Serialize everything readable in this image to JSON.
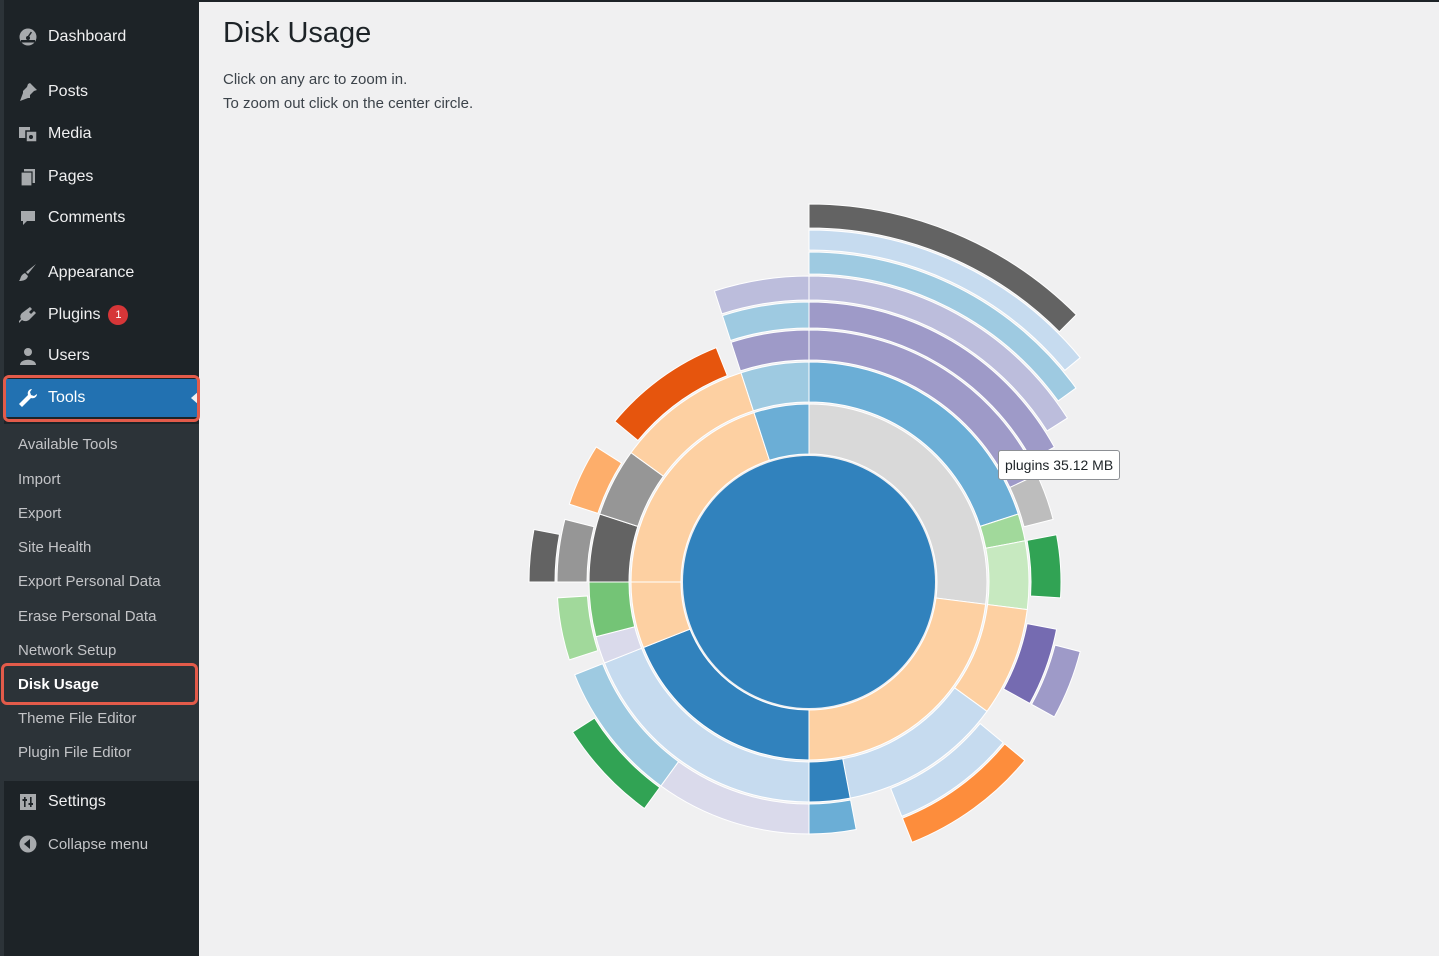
{
  "sidebar": {
    "items": [
      {
        "id": "dashboard",
        "label": "Dashboard",
        "icon": "dashboard-icon"
      },
      {
        "id": "posts",
        "label": "Posts",
        "icon": "pushpin-icon"
      },
      {
        "id": "media",
        "label": "Media",
        "icon": "media-icon"
      },
      {
        "id": "pages",
        "label": "Pages",
        "icon": "pages-icon"
      },
      {
        "id": "comments",
        "label": "Comments",
        "icon": "comment-icon"
      },
      {
        "id": "appearance",
        "label": "Appearance",
        "icon": "paintbrush-icon"
      },
      {
        "id": "plugins",
        "label": "Plugins",
        "icon": "plug-icon",
        "badge": "1"
      },
      {
        "id": "users",
        "label": "Users",
        "icon": "user-icon"
      },
      {
        "id": "tools",
        "label": "Tools",
        "icon": "wrench-icon",
        "active": true
      }
    ],
    "tools_submenu": [
      "Available Tools",
      "Import",
      "Export",
      "Site Health",
      "Export Personal Data",
      "Erase Personal Data",
      "Network Setup",
      "Disk Usage",
      "Theme File Editor",
      "Plugin File Editor"
    ],
    "current_submenu": "Disk Usage",
    "settings_label": "Settings",
    "settings_icon": "settings-icon",
    "collapse_label": "Collapse menu",
    "collapse_icon": "collapse-icon"
  },
  "page": {
    "title": "Disk Usage",
    "instructions": [
      "Click on any arc to zoom in.",
      "To zoom out click on the center circle."
    ]
  },
  "tooltip": {
    "text": "plugins 35.12 MB"
  },
  "colors": {
    "sidebar_bg": "#1d2327",
    "submenu_bg": "#2c3338",
    "active_bg": "#2271b1",
    "highlight": "#e35b4a",
    "badge": "#d63638"
  },
  "chart_data": {
    "type": "sunburst",
    "rings": [
      {
        "level": 1,
        "segments": [
          {
            "start": 0,
            "end": 0.27,
            "color": "#d9d9d9"
          },
          {
            "start": 0.27,
            "end": 0.5,
            "color": "#fdd0a2"
          },
          {
            "start": 0.5,
            "end": 0.69,
            "color": "#3182bd"
          },
          {
            "start": 0.69,
            "end": 0.75,
            "color": "#fdd0a2"
          },
          {
            "start": 0.75,
            "end": 0.95,
            "color": "#fdd0a2"
          },
          {
            "start": 0.95,
            "end": 1.0,
            "color": "#6baed6"
          }
        ]
      },
      {
        "level": 2,
        "segments": [
          {
            "start": 0,
            "end": 0.2,
            "color": "#6baed6"
          },
          {
            "start": 0.2,
            "end": 0.22,
            "color": "#a1d99b"
          },
          {
            "start": 0.22,
            "end": 0.27,
            "color": "#c7e9c0"
          },
          {
            "start": 0.27,
            "end": 0.35,
            "color": "#fdd0a2"
          },
          {
            "start": 0.35,
            "end": 0.47,
            "color": "#c6dbef"
          },
          {
            "start": 0.47,
            "end": 0.5,
            "color": "#3182bd"
          },
          {
            "start": 0.5,
            "end": 0.69,
            "color": "#c6dbef"
          },
          {
            "start": 0.69,
            "end": 0.71,
            "color": "#dadaeb"
          },
          {
            "start": 0.71,
            "end": 0.75,
            "color": "#74c476"
          },
          {
            "start": 0.75,
            "end": 0.8,
            "color": "#636363"
          },
          {
            "start": 0.8,
            "end": 0.85,
            "color": "#969696"
          },
          {
            "start": 0.85,
            "end": 0.95,
            "color": "#fdd0a2"
          },
          {
            "start": 0.95,
            "end": 1.0,
            "color": "#9ecae1"
          }
        ]
      },
      {
        "level": 3,
        "segments": [
          {
            "start": 0,
            "end": 0.18,
            "color": "#9e9ac8"
          },
          {
            "start": 0.18,
            "end": 0.21,
            "color": "#bdbdbd"
          },
          {
            "start": 0.22,
            "end": 0.26,
            "color": "#31a354"
          },
          {
            "start": 0.28,
            "end": 0.33,
            "color": "#756bb1"
          },
          {
            "start": 0.36,
            "end": 0.44,
            "color": "#c6dbef"
          },
          {
            "start": 0.47,
            "end": 0.5,
            "color": "#6baed6"
          },
          {
            "start": 0.5,
            "end": 0.6,
            "color": "#dadaeb"
          },
          {
            "start": 0.6,
            "end": 0.69,
            "color": "#9ecae1"
          },
          {
            "start": 0.7,
            "end": 0.74,
            "color": "#a1d99b"
          },
          {
            "start": 0.75,
            "end": 0.79,
            "color": "#969696"
          },
          {
            "start": 0.8,
            "end": 0.84,
            "color": "#fdae6b"
          },
          {
            "start": 0.86,
            "end": 0.94,
            "color": "#e6550d"
          },
          {
            "start": 0.95,
            "end": 1.0,
            "color": "#9e9ac8"
          }
        ]
      },
      {
        "level": 4,
        "segments": [
          {
            "start": 0,
            "end": 0.17,
            "color": "#9e9ac8"
          },
          {
            "start": 0.29,
            "end": 0.33,
            "color": "#9e9ac8"
          },
          {
            "start": 0.36,
            "end": 0.44,
            "color": "#fd8d3c"
          },
          {
            "start": 0.6,
            "end": 0.66,
            "color": "#31a354"
          },
          {
            "start": 0.75,
            "end": 0.78,
            "color": "#636363"
          },
          {
            "start": 0.95,
            "end": 1.0,
            "color": "#9ecae1"
          }
        ]
      },
      {
        "level": 5,
        "segments": [
          {
            "start": 0,
            "end": 0.16,
            "color": "#bcbddc"
          },
          {
            "start": 0.95,
            "end": 1.0,
            "color": "#bcbddc"
          }
        ]
      },
      {
        "level": 6,
        "segments": [
          {
            "start": 0,
            "end": 0.15,
            "color": "#9ecae1"
          }
        ]
      },
      {
        "level": 7,
        "segments": [
          {
            "start": 0,
            "end": 0.14,
            "color": "#c6dbef"
          }
        ]
      },
      {
        "level": 8,
        "segments": [
          {
            "start": 0,
            "end": 0.125,
            "color": "#636363"
          }
        ]
      }
    ]
  }
}
